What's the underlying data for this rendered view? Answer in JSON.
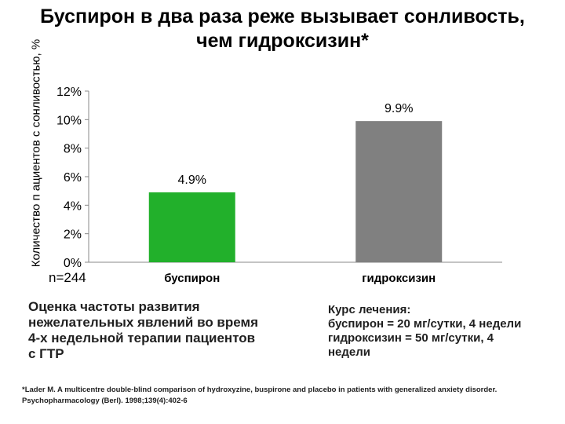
{
  "title": "Буспирон в два раза реже вызывает сонливость,\nчем гидроксизин*",
  "note": "n=244",
  "assessment": "Оценка частоты развития\nнежелательных явлений во время\n4-х недельной терапии пациентов\nс ГТР",
  "course": "Курс лечения:\nбуспирон = 20 мг/сутки, 4 недели\nгидроксизин = 50 мг/сутки, 4\nнедели",
  "reference": "*Lader M. A multicentre double-blind comparison of hydroxyzine, buspirone and placebo in patients with generalized anxiety disorder. Psychopharmacology (Berl). 1998;139(4):402-6",
  "chart_data": {
    "type": "bar",
    "title": "Буспирон в два раза реже вызывает сонливость, чем гидроксизин*",
    "ylabel": "Количество п ациентов с сонливостью, %",
    "xlabel": "",
    "categories": [
      "буспирон",
      "гидроксизин"
    ],
    "values": [
      4.9,
      9.9
    ],
    "data_labels": [
      "4.9%",
      "9.9%"
    ],
    "colors": [
      "#22b02b",
      "#808080"
    ],
    "ylim": [
      0,
      12
    ],
    "yticks": [
      0,
      2,
      4,
      6,
      8,
      10,
      12
    ],
    "ytick_labels": [
      "0%",
      "2%",
      "4%",
      "6%",
      "8%",
      "10%",
      "12%"
    ],
    "grid": false,
    "legend": "none"
  }
}
